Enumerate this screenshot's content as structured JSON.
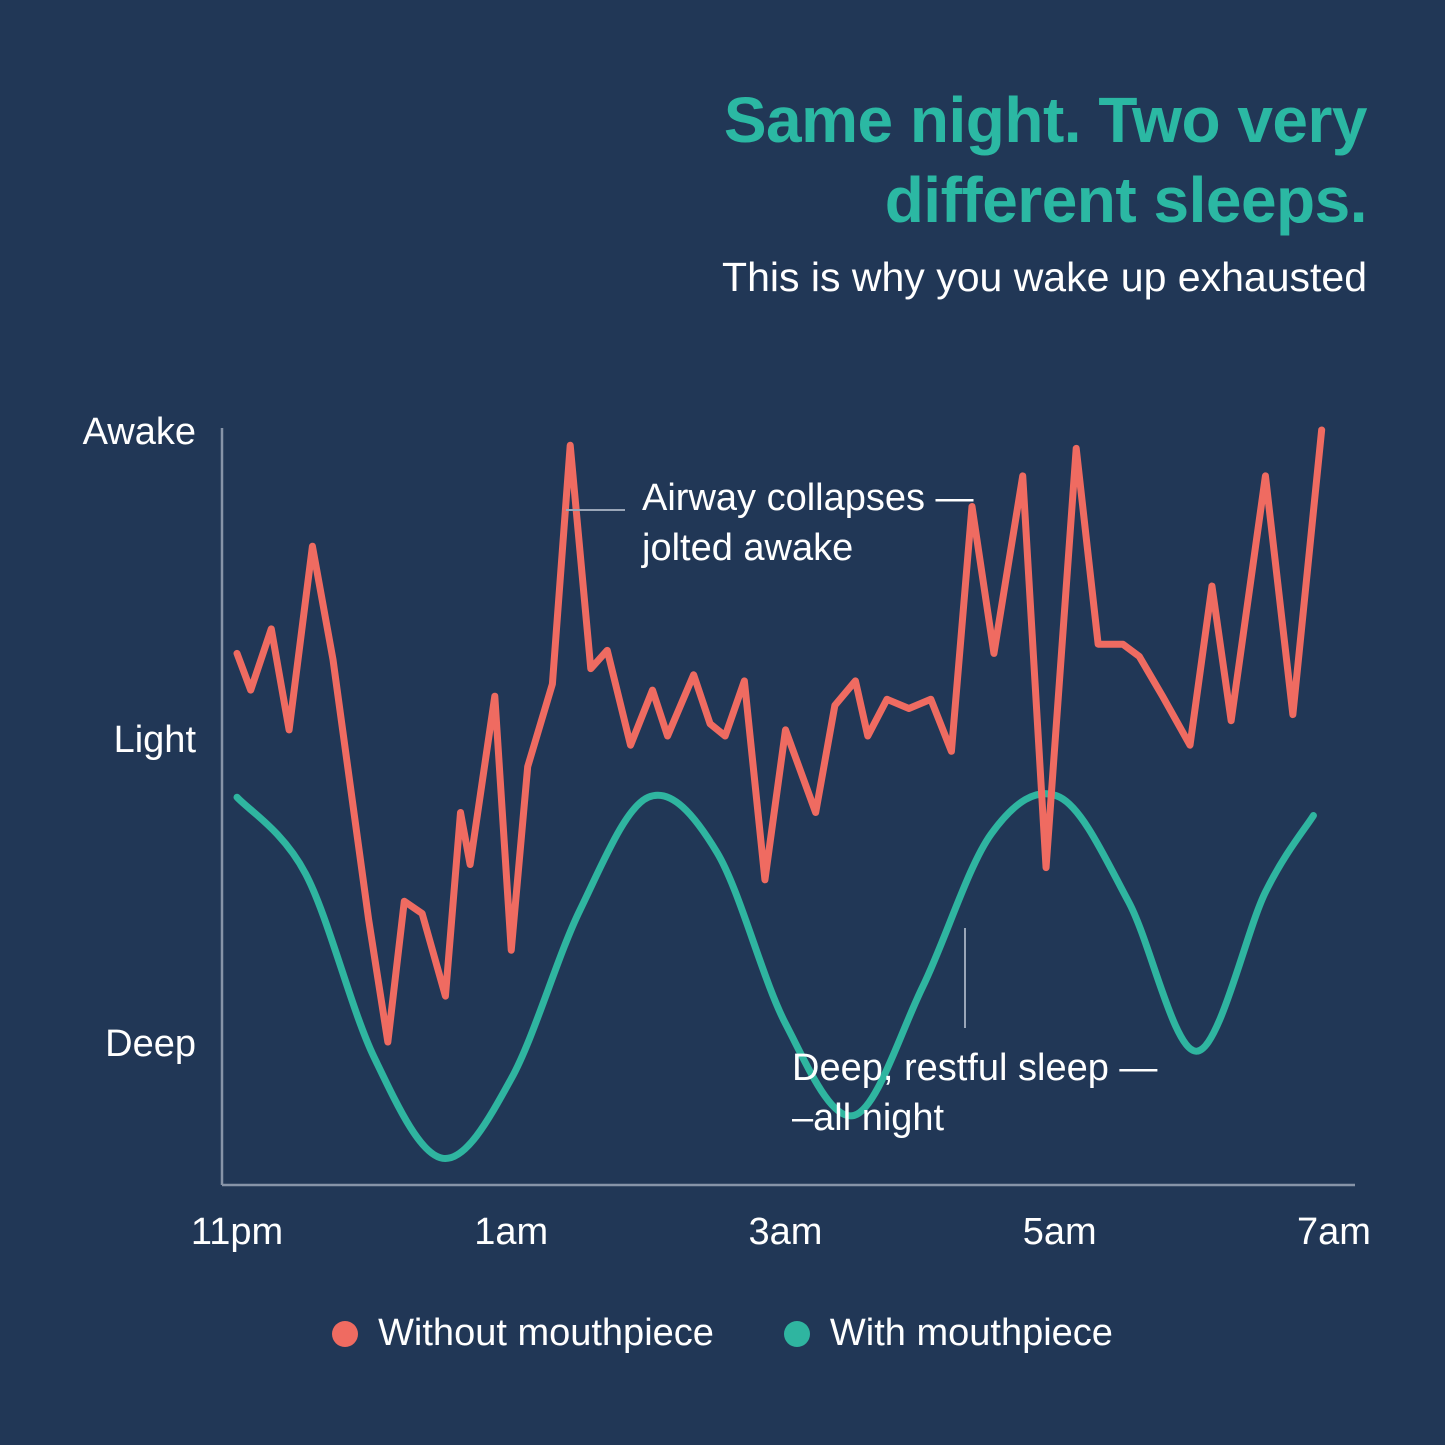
{
  "title_line1": "Same night. Two very",
  "title_line2": "different sleeps.",
  "subtitle": "This is why you wake up exhausted",
  "colors": {
    "background": "#213756",
    "accent": "#2bb8a3",
    "without": "#ef6b61",
    "with": "#2fb5a0",
    "axis": "#8794a8"
  },
  "legend": [
    {
      "label": "Without mouthpiece",
      "color": "#ef6b61"
    },
    {
      "label": "With mouthpiece",
      "color": "#2fb5a0"
    }
  ],
  "annotations": [
    {
      "lines": [
        "Airway collapses —",
        "jolted awake"
      ]
    },
    {
      "lines": [
        "Deep, restful sleep —",
        "–all night"
      ]
    }
  ],
  "chart_data": {
    "type": "line",
    "x_unit": "hours after 11pm",
    "xlim": [
      0,
      8.2
    ],
    "x_ticks": [
      0,
      2,
      4,
      6,
      8
    ],
    "x_tick_labels": [
      "11pm",
      "1am",
      "3am",
      "5am",
      "7am"
    ],
    "y_ticks": [
      0,
      1,
      2
    ],
    "y_tick_labels": [
      "Deep",
      "Light",
      "Awake"
    ],
    "ylim": [
      -0.45,
      2.1
    ],
    "grid": false,
    "legend_position": "bottom-center",
    "series": [
      {
        "name": "Without mouthpiece",
        "color": "#ef6b61",
        "x": [
          0,
          0.1,
          0.25,
          0.38,
          0.55,
          0.7,
          0.96,
          1.1,
          1.22,
          1.35,
          1.52,
          1.63,
          1.7,
          1.88,
          2.0,
          2.12,
          2.3,
          2.43,
          2.58,
          2.7,
          2.87,
          3.03,
          3.14,
          3.33,
          3.45,
          3.56,
          3.7,
          3.85,
          4.0,
          4.22,
          4.36,
          4.51,
          4.6,
          4.74,
          4.9,
          5.06,
          5.21,
          5.36,
          5.52,
          5.73,
          5.9,
          6.12,
          6.28,
          6.46,
          6.58,
          6.75,
          6.95,
          7.11,
          7.25,
          7.5,
          7.7,
          7.91
        ],
        "y": [
          0.27,
          0.15,
          0.35,
          0.02,
          0.62,
          0.25,
          -0.6,
          -1.0,
          -0.54,
          -0.58,
          -0.85,
          -0.25,
          -0.42,
          0.13,
          -0.7,
          -0.1,
          0.17,
          0.95,
          0.22,
          0.28,
          -0.03,
          0.15,
          0.0,
          0.2,
          0.04,
          0.0,
          0.18,
          -0.47,
          0.02,
          -0.25,
          0.1,
          0.18,
          0.0,
          0.12,
          0.09,
          0.12,
          -0.05,
          0.75,
          0.27,
          0.85,
          -0.43,
          0.94,
          0.3,
          0.3,
          0.26,
          0.13,
          -0.03,
          0.49,
          0.05,
          0.85,
          0.07,
          1.0
        ],
        "note": "Sampled points are transformed to the chart's stage scale by the script."
      },
      {
        "name": "With mouthpiece",
        "color": "#2fb5a0",
        "x": [
          0,
          0.5,
          1.0,
          1.5,
          2.0,
          2.5,
          3.0,
          3.5,
          4.0,
          4.5,
          5.0,
          5.5,
          6.0,
          6.5,
          7.0,
          7.5,
          7.85
        ],
        "y": [
          0.8,
          0.55,
          -0.05,
          -0.38,
          -0.12,
          0.43,
          0.8,
          0.62,
          0.06,
          -0.24,
          0.18,
          0.68,
          0.8,
          0.46,
          -0.03,
          0.49,
          0.74
        ]
      }
    ]
  }
}
